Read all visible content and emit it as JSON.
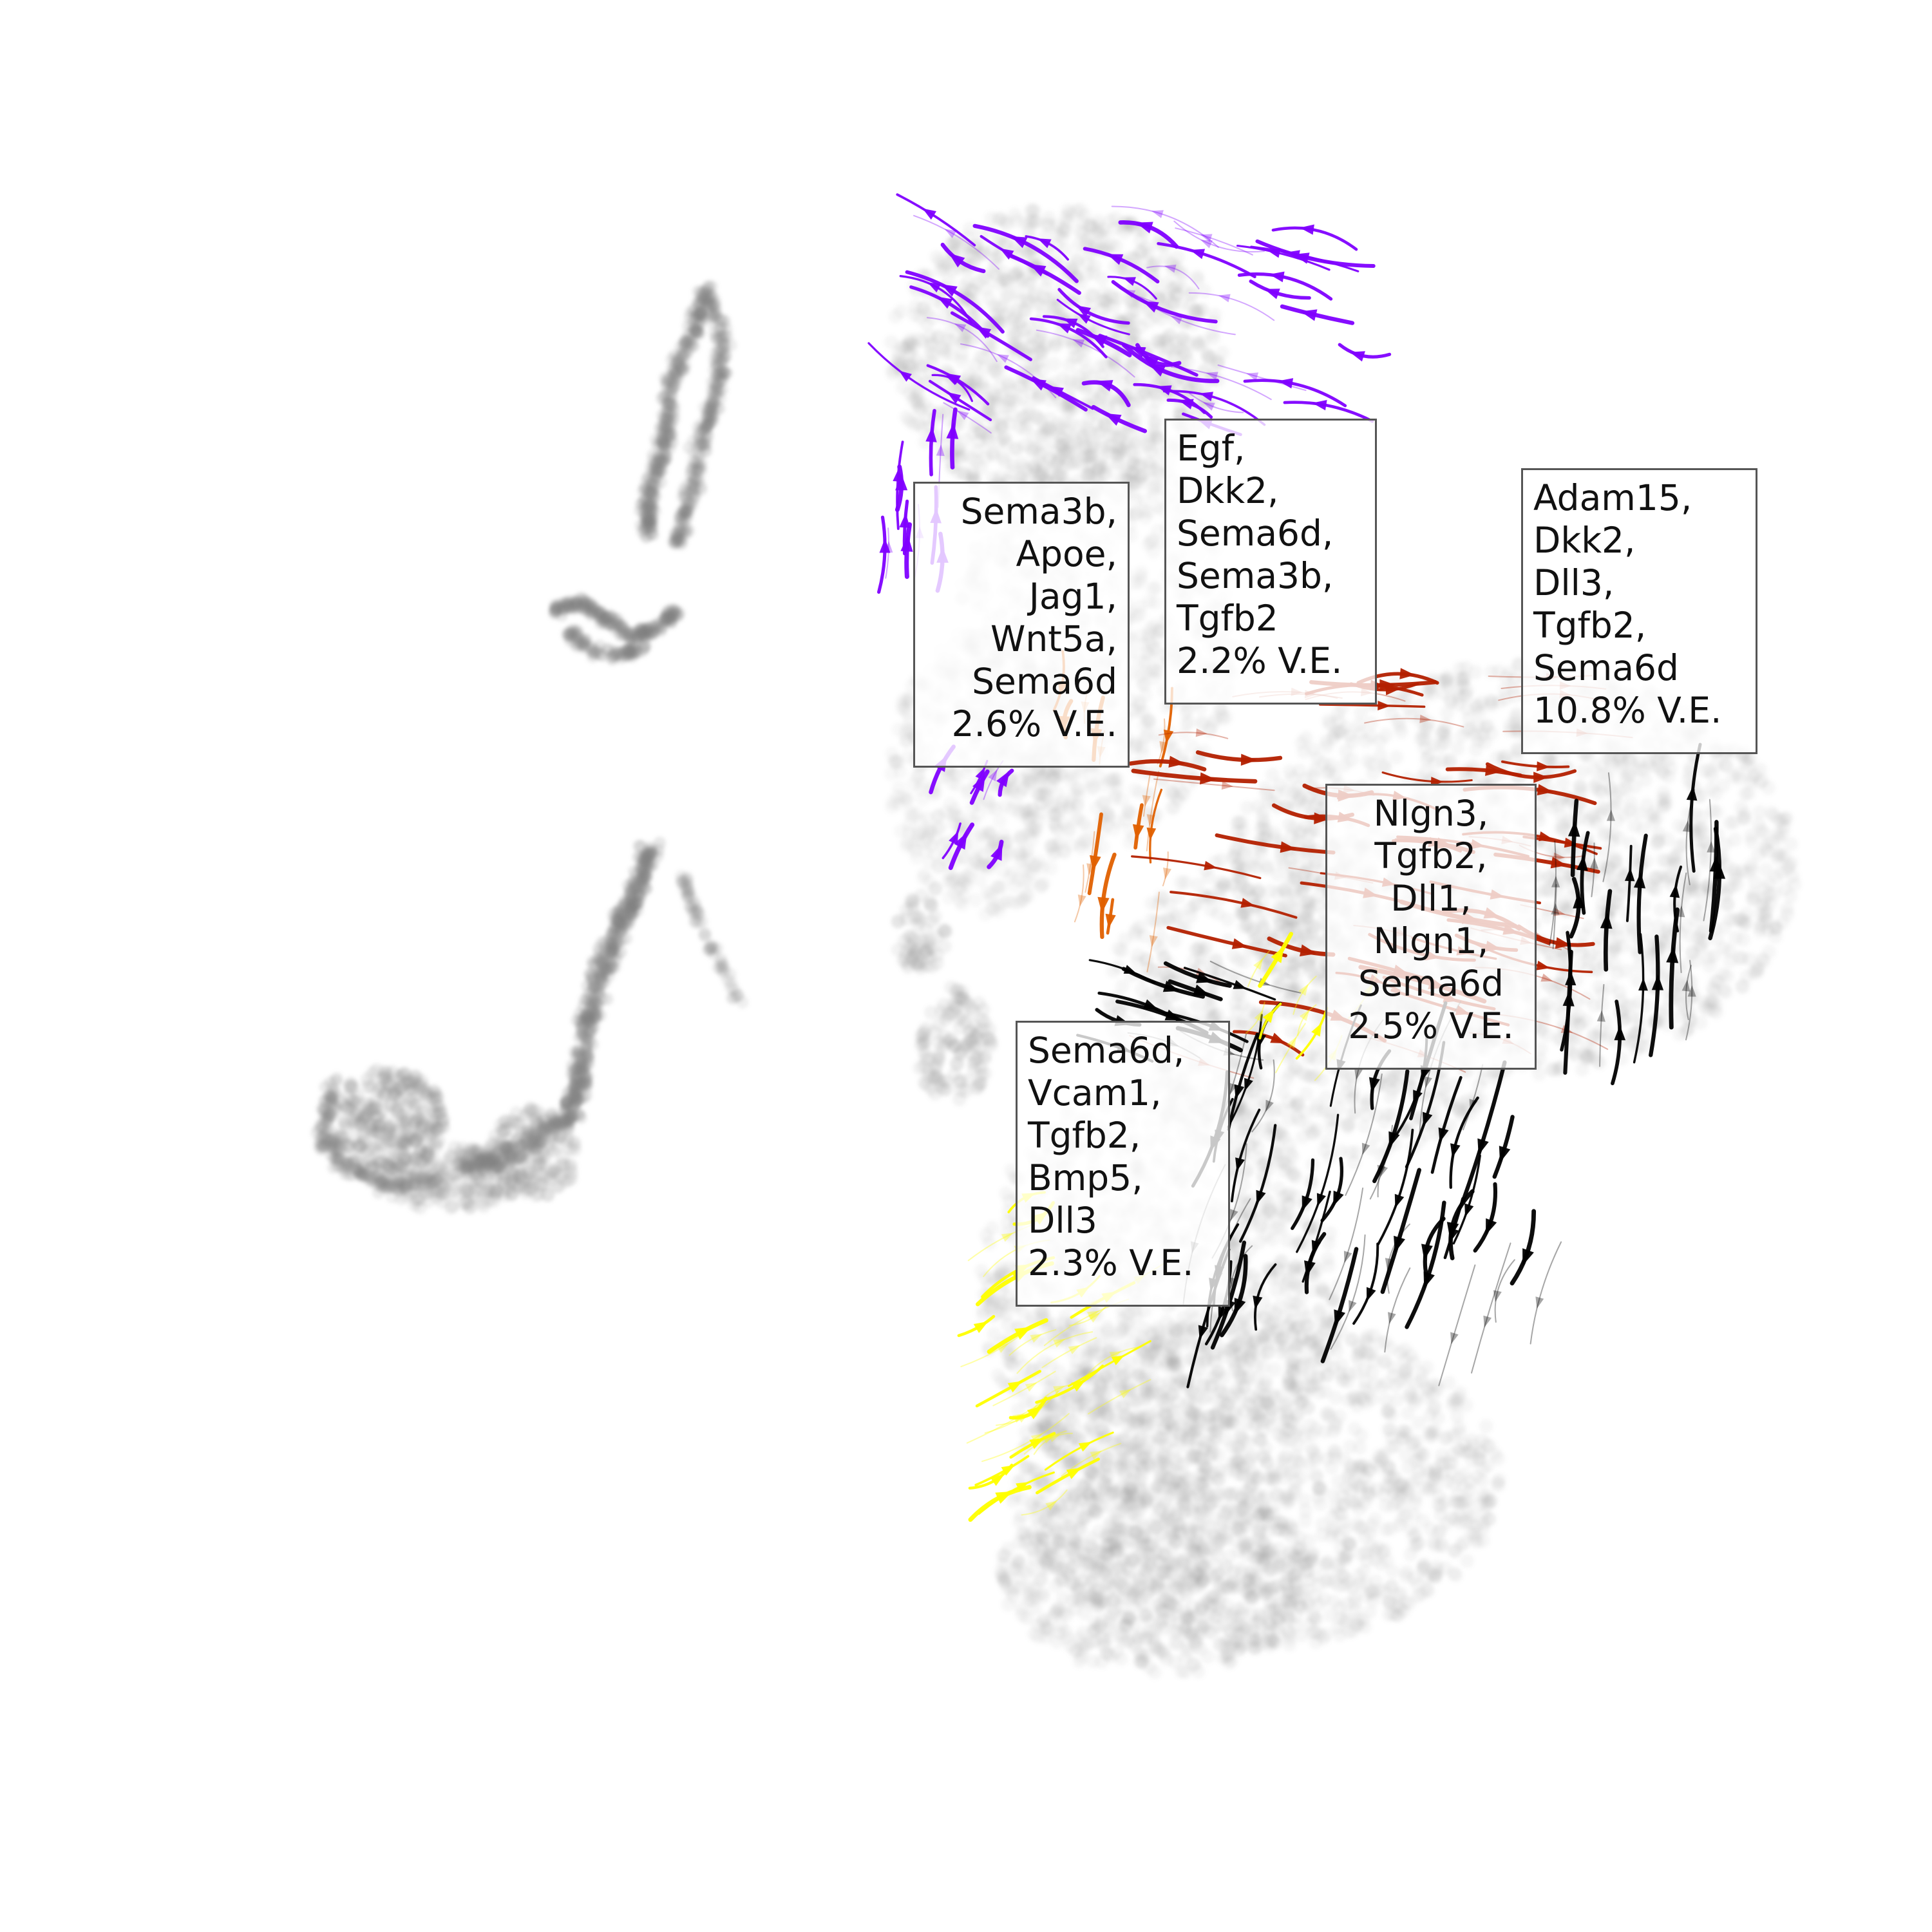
{
  "chart_data": {
    "type": "scatter",
    "title": "",
    "xlabel": "",
    "ylabel": "",
    "axes": "off",
    "grid": false,
    "point_color": "#808080",
    "streamline_overlay": true,
    "modules": [
      {
        "id": "purple",
        "color": "#8000ff",
        "genes": [
          "Sema3b,",
          "Apoe,",
          "Jag1,",
          "Wnt5a,",
          "Sema6d"
        ],
        "variance_explained": "2.6% V.E."
      },
      {
        "id": "orange",
        "color": "#e06000",
        "genes": [
          "Egf,",
          "Dkk2,",
          "Sema6d,",
          "Sema3b,",
          "Tgfb2"
        ],
        "variance_explained": "2.2% V.E."
      },
      {
        "id": "red",
        "color": "#b32000",
        "genes": [
          "Adam15,",
          "Dkk2,",
          "Dll3,",
          "Tgfb2,",
          "Sema6d"
        ],
        "variance_explained": "10.8% V.E."
      },
      {
        "id": "black",
        "color": "#000000",
        "genes": [
          "Nlgn3,",
          "Tgfb2,",
          "Dll1,",
          "Nlgn1,",
          "Sema6d"
        ],
        "variance_explained": "2.5% V.E."
      },
      {
        "id": "yellow",
        "color": "#ffff00",
        "genes": [
          "Sema6d,",
          "Vcam1,",
          "Tgfb2,",
          "Bmp5,",
          "Dll3"
        ],
        "variance_explained": "2.3% V.E."
      }
    ]
  }
}
